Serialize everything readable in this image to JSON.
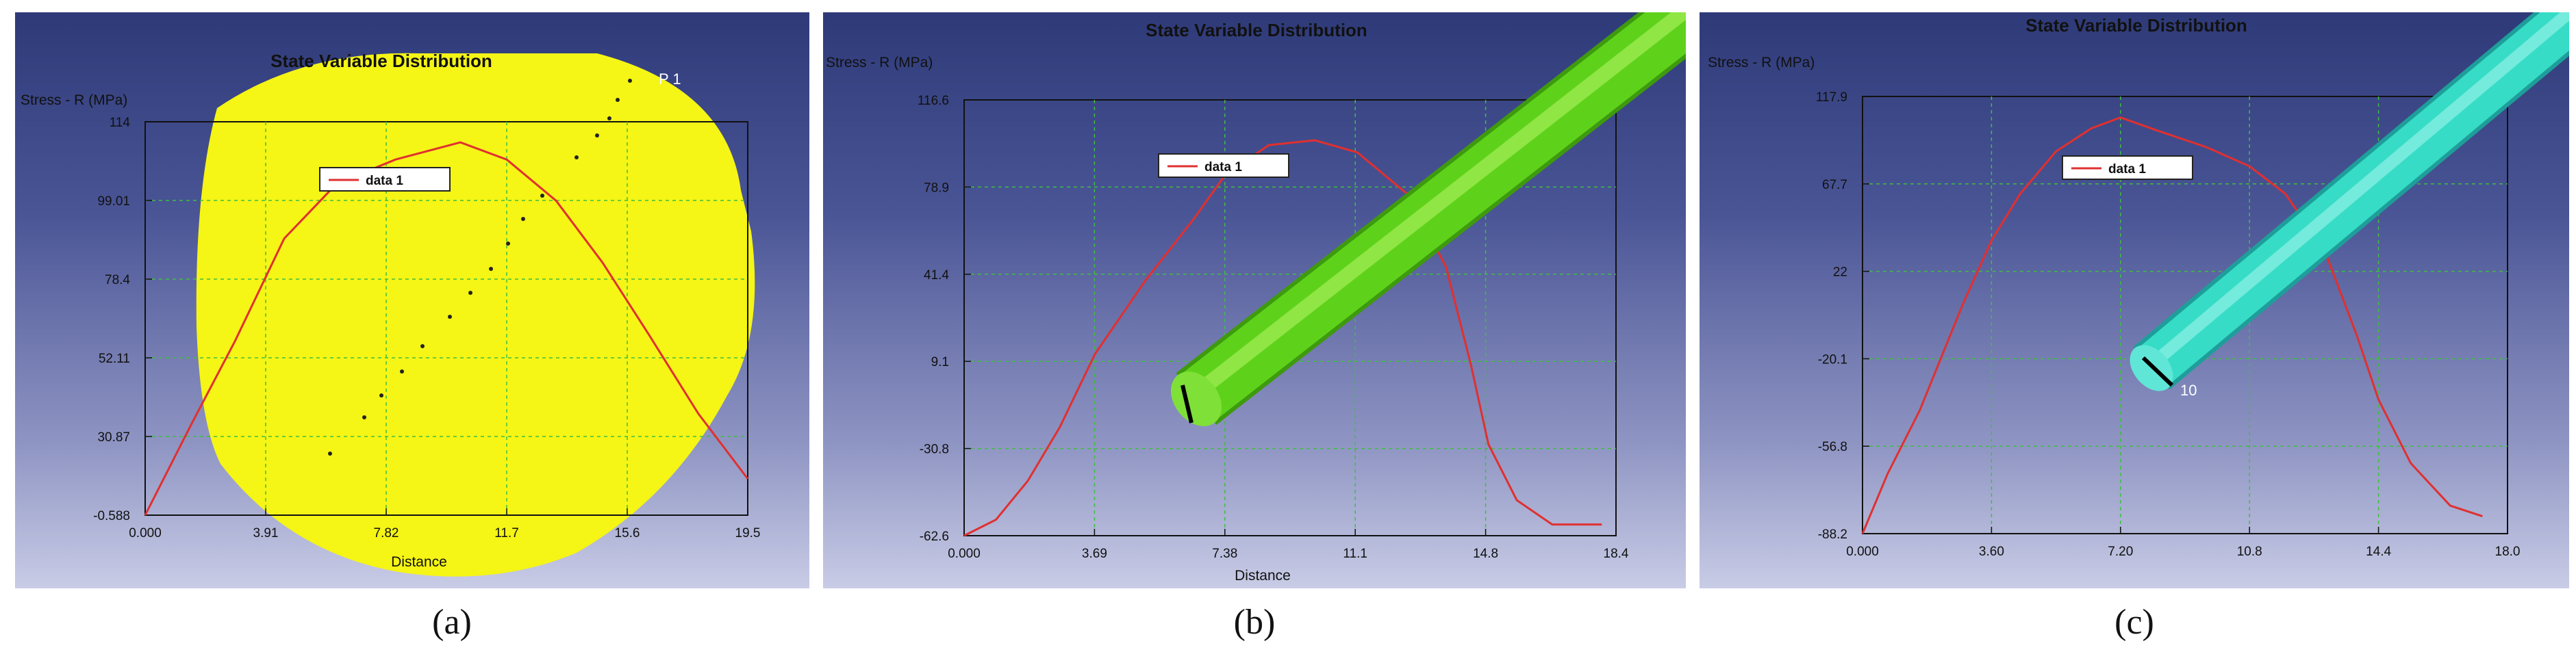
{
  "figure": {
    "captions": [
      "(a)",
      "(b)",
      "(c)"
    ]
  },
  "chart_data": [
    {
      "type": "line",
      "title": "State Variable Distribution",
      "xlabel": "Distance",
      "ylabel": "Stress - R (MPa)",
      "xlim": [
        0,
        19.5
      ],
      "ylim": [
        -0.588,
        114
      ],
      "x_ticks": [
        "0.000",
        "3.91",
        "7.82",
        "11.7",
        "15.6",
        "19.5"
      ],
      "y_ticks": [
        "114",
        "99.01",
        "78.4",
        "52.11",
        "30.87",
        "-0.588"
      ],
      "legend": "top-center",
      "grid": true,
      "series": [
        {
          "name": "data 1",
          "color": "#e03030",
          "x": [
            0,
            1.5,
            2.9,
            4.5,
            6.2,
            8.1,
            10.2,
            11.7,
            13.3,
            14.8,
            16.3,
            17.9,
            19.5
          ],
          "y": [
            -0.588,
            26,
            50,
            80,
            96,
            103,
            108,
            103,
            91,
            73,
            52,
            29,
            10
          ]
        }
      ],
      "annotations": [
        "P 1"
      ],
      "overlay": {
        "shape": "disc",
        "color": "#f5f516"
      }
    },
    {
      "type": "line",
      "title": "State Variable Distribution",
      "xlabel": "Distance",
      "ylabel": "Stress - R (MPa)",
      "xlim": [
        0,
        18.4
      ],
      "ylim": [
        -62.6,
        116.6
      ],
      "x_ticks": [
        "0.000",
        "3.69",
        "7.38",
        "11.1",
        "14.8",
        "18.4"
      ],
      "y_ticks": [
        "116.6",
        "78.9",
        "41.4",
        "9.1",
        "-30.8",
        "-62.6"
      ],
      "legend": "top-center",
      "grid": true,
      "series": [
        {
          "name": "data 1",
          "color": "#e03030",
          "x": [
            0,
            0.9,
            1.8,
            2.7,
            3.69,
            5.1,
            6.5,
            7.38,
            8.6,
            9.9,
            11.1,
            12.5,
            13.6,
            14.3,
            14.8,
            15.6,
            16.6,
            17.4,
            18.0
          ],
          "y": [
            -62.6,
            -56,
            -40,
            -18,
            12,
            42,
            68,
            86,
            98,
            100,
            95,
            78,
            48,
            8,
            -25,
            -48,
            -58,
            -58,
            -58
          ]
        }
      ],
      "overlay": {
        "shape": "rod",
        "color": "#5ed21a"
      }
    },
    {
      "type": "line",
      "title": "State Variable Distribution",
      "xlabel": "",
      "ylabel": "Stress - R (MPa)",
      "xlim": [
        0,
        18.0
      ],
      "ylim": [
        -88.2,
        117.9
      ],
      "x_ticks": [
        "0.000",
        "3.60",
        "7.20",
        "10.8",
        "14.4",
        "18.0"
      ],
      "y_ticks": [
        "117.9",
        "67.7",
        "22",
        "-20.1",
        "-56.8",
        "-88.2"
      ],
      "legend": "top-center",
      "grid": true,
      "series": [
        {
          "name": "data 1",
          "color": "#e03030",
          "x": [
            0,
            0.7,
            1.6,
            2.8,
            3.6,
            4.4,
            5.4,
            6.4,
            7.2,
            8.2,
            9.6,
            10.8,
            11.8,
            12.9,
            13.8,
            14.4,
            15.3,
            16.4,
            17.3
          ],
          "y": [
            -88.2,
            -60,
            -30,
            20,
            50,
            72,
            92,
            103,
            108,
            102,
            94,
            85,
            72,
            45,
            5,
            -25,
            -55,
            -75,
            -80
          ]
        }
      ],
      "annotations": [
        "10"
      ],
      "overlay": {
        "shape": "rod",
        "color": "#36dcc6"
      }
    }
  ]
}
